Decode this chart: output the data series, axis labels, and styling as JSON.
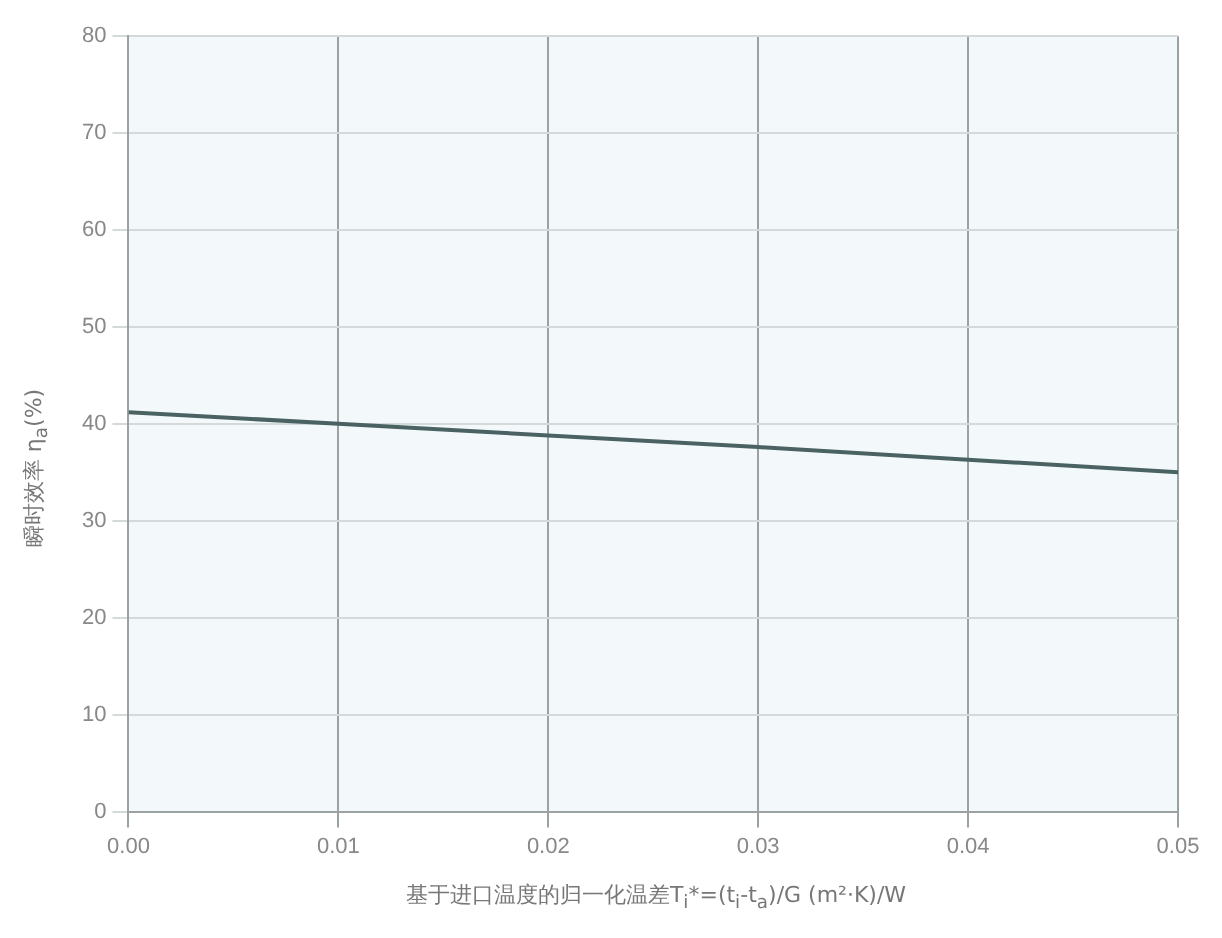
{
  "chart_data": {
    "type": "line",
    "xlabel": "基于进口温度的归一化温差T$_{i}$*=(t$_{i}$-t$_{a}$)/G (m²·K)/W",
    "ylabel": "瞬时效率 η$_{a}$(%)",
    "x": [
      0,
      0.01,
      0.02,
      0.03,
      0.04,
      0.05
    ],
    "series": [
      {
        "color": "#4a6262",
        "values": [
          41.2,
          40,
          38.8,
          37.6,
          36.3,
          35
        ]
      }
    ],
    "xlim": [
      0,
      0.05
    ],
    "xticks": [
      {
        "value": 0,
        "label": "0.00"
      },
      {
        "value": 0.01,
        "label": "0.01"
      },
      {
        "value": 0.02,
        "label": "0.02"
      },
      {
        "value": 0.03,
        "label": "0.03"
      },
      {
        "value": 0.04,
        "label": "0.04"
      },
      {
        "value": 0.05,
        "label": "0.05"
      }
    ],
    "ylim": [
      0,
      80
    ],
    "yticks": [
      0,
      10,
      20,
      30,
      40,
      50,
      60,
      70,
      80
    ],
    "grid": true,
    "legend": false,
    "marker": "none",
    "line_style": "solid"
  }
}
